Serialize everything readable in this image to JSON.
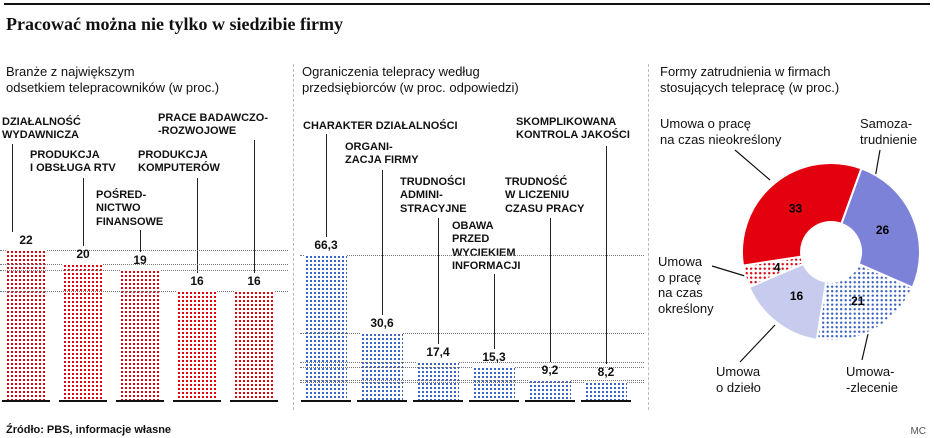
{
  "page": {
    "title": "Pracować można nie tylko w siedzibie firmy",
    "source": "Źródło: PBS, informacje własne",
    "credit": "MC"
  },
  "panels": {
    "industries": {
      "title": "Branże z największym\nodsetkiem telepracowników (w proc.)",
      "callouts": [
        "DZIAŁALNOŚĆ\nWYDAWNICZA",
        "PRODUKCJA\nI OBSŁUGA RTV",
        "POŚRED-\nNICTWO\nFINANSOWE",
        "PRODUKCJA\nKOMPUTERÓW",
        "PRACE BADAWCZO-\n-ROZWOJOWE"
      ]
    },
    "limits": {
      "title": "Ograniczenia telepracy według\nprzedsiębiorców (w proc. odpowiedzi)",
      "callouts": [
        "CHARAKTER DZIAŁALNOŚCI",
        "ORGANI-\nZACJA FIRMY",
        "TRUDNOŚCI\nADMINI-\nSTRACYJNE",
        "OBAWA\nPRZED\nWYCIEKIEM\nINFORMACJI",
        "TRUDNOŚĆ\nW LICZENIU\nCZASU PRACY",
        "SKOMPLIKOWANA\nKONTROLA JAKOŚCI"
      ]
    },
    "employment": {
      "title": "Formy zatrudnienia w firmach\nstosujących telepracę (w proc.)",
      "labels": [
        "Umowa o pracę\nna czas nieokreślony",
        "Samoza-\ntrudnienie",
        "Umowa\no pracę\nna czas\nokreślony",
        "Umowa\no dzieło",
        "Umowa-\n-zlecenie"
      ]
    }
  },
  "chart_data": [
    {
      "type": "bar",
      "title": "Branże z największym odsetkiem telepracowników (w proc.)",
      "categories": [
        "Działalność wydawnicza",
        "Produkcja i obsługa RTV",
        "Pośrednictwo finansowe",
        "Produkcja komputerów",
        "Prace badawczo-rozwojowe"
      ],
      "values": [
        22,
        20,
        19,
        16,
        16
      ],
      "value_labels": [
        "22",
        "20",
        "19",
        "16",
        "16"
      ],
      "style": "red-dotted-bars",
      "grid": "dotted-horizontal"
    },
    {
      "type": "bar",
      "title": "Ograniczenia telepracy według przedsiębiorców (w proc. odpowiedzi)",
      "categories": [
        "Charakter działalności",
        "Organizacja firmy",
        "Trudności administracyjne",
        "Obawa przed wyciekiem informacji",
        "Trudność w liczeniu czasu pracy",
        "Skomplikowana kontrola jakości"
      ],
      "values": [
        66.3,
        30.6,
        17.4,
        15.3,
        9.2,
        8.2
      ],
      "value_labels": [
        "66,3",
        "30,6",
        "17,4",
        "15,3",
        "9,2",
        "8,2"
      ],
      "style": "blue-dotted-bars",
      "grid": "dotted-horizontal"
    },
    {
      "type": "pie",
      "title": "Formy zatrudnienia w firmach stosujących telepracę (w proc.)",
      "start_angle_deg": 20,
      "slices": [
        {
          "label": "Samozatrudnienie",
          "value": 26,
          "fill": "#7d82d9"
        },
        {
          "label": "Umowa-zlecenie",
          "value": 21,
          "fill": "dots-blue"
        },
        {
          "label": "Umowa o dzieło",
          "value": 16,
          "fill": "#c7cbee"
        },
        {
          "label": "Umowa o pracę na czas określony",
          "value": 4,
          "fill": "dots-red"
        },
        {
          "label": "Umowa o pracę na czas nieokreślony",
          "value": 33,
          "fill": "#e3000f"
        }
      ]
    }
  ],
  "colors": {
    "red": "#e3000f",
    "blue_dots": "#3c63c4",
    "purple": "#7d82d9",
    "light_purple": "#c7cbee"
  }
}
